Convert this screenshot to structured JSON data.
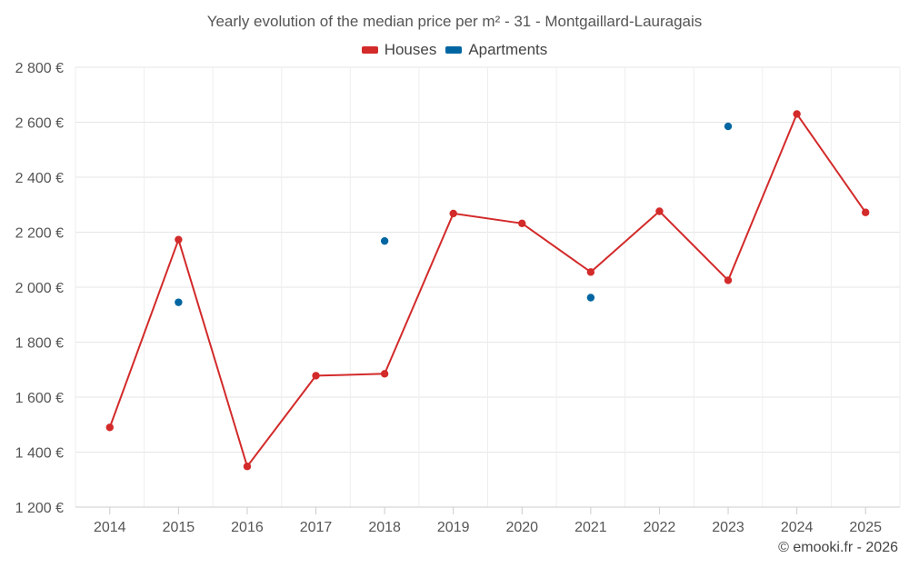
{
  "chart_data": {
    "type": "line",
    "title": "Yearly evolution of the median price per m² - 31 - Montgaillard-Lauragais",
    "xlabel": "",
    "ylabel": "",
    "categories": [
      "2014",
      "2015",
      "2016",
      "2017",
      "2018",
      "2019",
      "2020",
      "2021",
      "2022",
      "2023",
      "2024",
      "2025"
    ],
    "ylim": [
      1200,
      2800
    ],
    "yticks": [
      1200,
      1400,
      1600,
      1800,
      2000,
      2200,
      2400,
      2600,
      2800
    ],
    "ytick_labels": [
      "1 200 €",
      "1 400 €",
      "1 600 €",
      "1 800 €",
      "2 000 €",
      "2 200 €",
      "2 400 €",
      "2 600 €",
      "2 800 €"
    ],
    "grid": true,
    "legend_position": "top-center",
    "series": [
      {
        "name": "Houses",
        "color": "#d32a2a",
        "style": "line-with-markers",
        "values": [
          1490,
          2173,
          1348,
          1678,
          1685,
          2268,
          2232,
          2055,
          2276,
          2025,
          2630,
          2272
        ]
      },
      {
        "name": "Apartments",
        "color": "#0066a1",
        "style": "markers-only",
        "values": [
          null,
          1945,
          null,
          null,
          2168,
          null,
          null,
          1962,
          null,
          2585,
          null,
          null
        ]
      }
    ]
  },
  "credit": "© emooki.fr - 2026"
}
